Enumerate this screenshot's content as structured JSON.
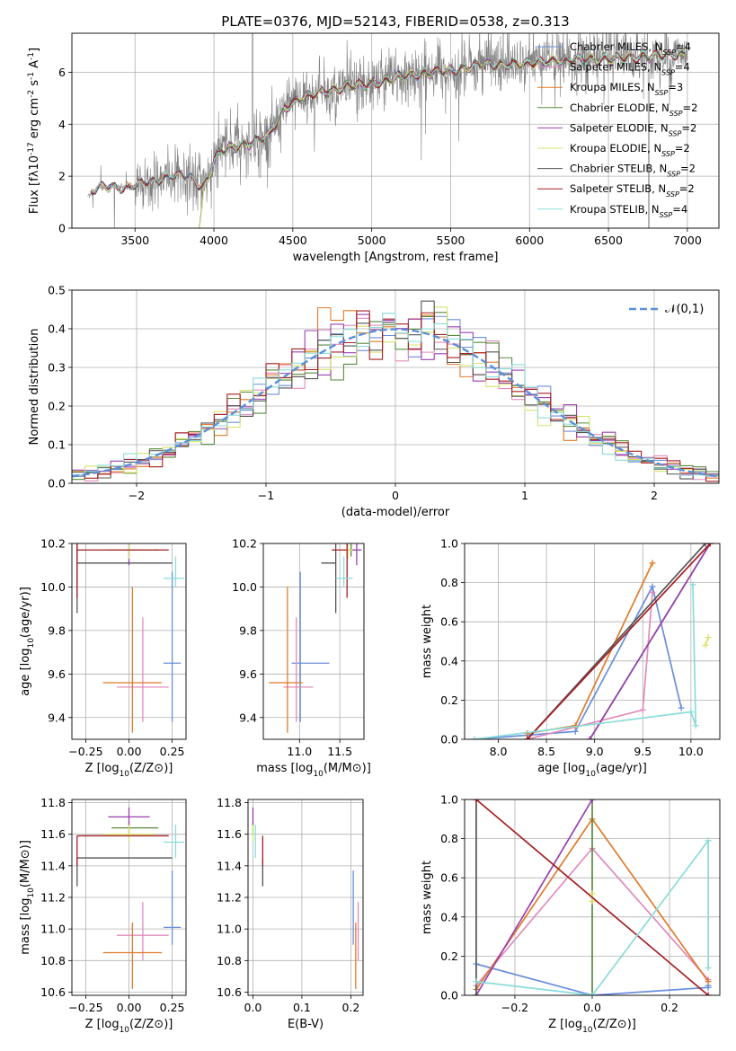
{
  "title": "PLATE=0376, MJD=52143, FIBERID=0538, z=0.313",
  "colors": {
    "Chabrier MILES": "#6a8fdc",
    "Salpeter MILES": "#e08cbc",
    "Kroupa MILES": "#e07b2a",
    "Chabrier ELODIE": "#5a8a3c",
    "Salpeter ELODIE": "#9a40b0",
    "Kroupa ELODIE": "#d8e36a",
    "Chabrier STELIB": "#555555",
    "Salpeter STELIB": "#a51f24",
    "Kroupa STELIB": "#8adcd8",
    "data": "#808080",
    "normal": "#5b8fd8"
  },
  "chart_data": [
    {
      "type": "line",
      "panel": "spectrum",
      "xlabel": "wavelength [Angstrom, rest frame]",
      "ylabel": "Flux [f$_\\lambda$10$^{-17}$ erg cm$^{-2}$ s$^{-1}$ A$^{-1}$]",
      "xlim": [
        3100,
        7200
      ],
      "ylim": [
        0,
        7.5
      ],
      "xticks": [
        3500,
        4000,
        4500,
        5000,
        5500,
        6000,
        6500,
        7000
      ],
      "yticks": [
        0,
        2,
        4,
        6
      ],
      "legend": [
        {
          "label": "Chabrier MILES, N",
          "sub": "SSP",
          "rest": "=4",
          "model": "Chabrier MILES"
        },
        {
          "label": "Salpeter MILES, N",
          "sub": "SSP",
          "rest": "=4",
          "model": "Salpeter MILES"
        },
        {
          "label": "Kroupa MILES, N",
          "sub": "SSP",
          "rest": "=3",
          "model": "Kroupa MILES"
        },
        {
          "label": "Chabrier ELODIE, N",
          "sub": "SSP",
          "rest": "=2",
          "model": "Chabrier ELODIE"
        },
        {
          "label": "Salpeter ELODIE, N",
          "sub": "SSP",
          "rest": "=2",
          "model": "Salpeter ELODIE"
        },
        {
          "label": "Kroupa ELODIE, N",
          "sub": "SSP",
          "rest": "=2",
          "model": "Kroupa ELODIE"
        },
        {
          "label": "Chabrier STELIB, N",
          "sub": "SSP",
          "rest": "=2",
          "model": "Chabrier STELIB"
        },
        {
          "label": "Salpeter STELIB, N",
          "sub": "SSP",
          "rest": "=2",
          "model": "Salpeter STELIB"
        },
        {
          "label": "Kroupa STELIB, N",
          "sub": "SSP",
          "rest": "=4",
          "model": "Kroupa STELIB"
        }
      ],
      "continuum": [
        [
          3200,
          1.25
        ],
        [
          3260,
          1.55
        ],
        [
          3350,
          1.6
        ],
        [
          3450,
          1.55
        ],
        [
          3550,
          1.7
        ],
        [
          3650,
          1.9
        ],
        [
          3750,
          2.0
        ],
        [
          3850,
          2.0
        ],
        [
          3900,
          1.7
        ],
        [
          3930,
          1.6
        ],
        [
          3960,
          1.9
        ],
        [
          4000,
          2.6
        ],
        [
          4050,
          3.0
        ],
        [
          4150,
          3.15
        ],
        [
          4250,
          3.3
        ],
        [
          4350,
          3.6
        ],
        [
          4450,
          4.6
        ],
        [
          4550,
          5.0
        ],
        [
          4650,
          5.2
        ],
        [
          4750,
          5.3
        ],
        [
          4850,
          5.5
        ],
        [
          4950,
          5.5
        ],
        [
          5050,
          5.6
        ],
        [
          5150,
          5.8
        ],
        [
          5250,
          5.9
        ],
        [
          5400,
          6.0
        ],
        [
          5550,
          6.1
        ],
        [
          5700,
          6.3
        ],
        [
          5900,
          6.3
        ],
        [
          6100,
          6.4
        ],
        [
          6300,
          6.5
        ],
        [
          6500,
          6.5
        ],
        [
          6700,
          6.6
        ],
        [
          7000,
          6.7
        ]
      ]
    },
    {
      "type": "bar",
      "panel": "residual-histogram",
      "xlabel": "(data-model)/error",
      "ylabel": "Normed distribution",
      "xlim": [
        -2.5,
        2.5
      ],
      "ylim": [
        0,
        0.5
      ],
      "xticks": [
        -2,
        -1,
        0,
        1,
        2
      ],
      "yticks": [
        0.0,
        0.1,
        0.2,
        0.3,
        0.4,
        0.5
      ],
      "legend": "$\\mathcal{N}(0,1)$",
      "bin_width": 0.1
    },
    {
      "type": "scatter",
      "panel": "Z-vs-age",
      "xlabel": "Z [log$_{10}$(Z/Z$_\\odot$)]",
      "ylabel": "age  [log$_{10}$(age/yr)]",
      "xlim": [
        -0.33,
        0.33
      ],
      "ylim": [
        9.3,
        10.2
      ],
      "xticks": [
        -0.25,
        0.0,
        0.25
      ],
      "yticks": [
        9.4,
        9.6,
        9.8,
        10.0,
        10.2
      ]
    },
    {
      "type": "scatter",
      "panel": "mass-vs-age",
      "xlabel": "mass [log$_{10}$(M/M$_\\odot$)]",
      "ylabel": "",
      "xlim": [
        10.55,
        11.8
      ],
      "ylim": [
        9.3,
        10.2
      ],
      "xticks": [
        11.0,
        11.5
      ],
      "yticks": [
        9.4,
        9.6,
        9.8,
        10.0,
        10.2
      ]
    },
    {
      "type": "line",
      "panel": "age-vs-mass-weight",
      "xlabel": "age  [log$_{10}$(age/yr)]",
      "ylabel": "mass weight",
      "xlim": [
        7.65,
        10.3
      ],
      "ylim": [
        0,
        1.0
      ],
      "xticks": [
        8.0,
        8.5,
        9.0,
        9.5,
        10.0
      ],
      "yticks": [
        0.0,
        0.2,
        0.4,
        0.6,
        0.8,
        1.0
      ]
    },
    {
      "type": "scatter",
      "panel": "Z-vs-mass",
      "xlabel": "Z [log$_{10}$(Z/Z$_\\odot$)]",
      "ylabel": "mass [log$_{10}$(M/M$_\\odot$)]",
      "xlim": [
        -0.33,
        0.33
      ],
      "ylim": [
        10.58,
        11.82
      ],
      "xticks": [
        -0.25,
        0.0,
        0.25
      ],
      "yticks": [
        10.6,
        10.8,
        11.0,
        11.2,
        11.4,
        11.6,
        11.8
      ]
    },
    {
      "type": "scatter",
      "panel": "EBV-vs-mass",
      "xlabel": "E(B-V)",
      "ylabel": "",
      "xlim": [
        -0.01,
        0.225
      ],
      "ylim": [
        10.58,
        11.82
      ],
      "xticks": [
        0.0,
        0.1,
        0.2
      ],
      "yticks": [
        10.6,
        10.8,
        11.0,
        11.2,
        11.4,
        11.6,
        11.8
      ]
    },
    {
      "type": "line",
      "panel": "Z-vs-mass-weight",
      "xlabel": "Z [log$_{10}$(Z/Z$_\\odot$)]",
      "ylabel": "mass weight",
      "xlim": [
        -0.33,
        0.33
      ],
      "ylim": [
        0,
        1.0
      ],
      "xticks": [
        -0.2,
        0.0,
        0.2
      ],
      "yticks": [
        0.0,
        0.2,
        0.4,
        0.6,
        0.8,
        1.0
      ]
    }
  ],
  "models": [
    {
      "name": "Chabrier MILES",
      "Z": 0.25,
      "age": 9.65,
      "mass": 11.01,
      "ebv": 0.205,
      "Zerr": [
        0.05,
        0.05
      ],
      "ageerr": [
        9.38,
        10.07
      ],
      "masserr": [
        10.9,
        11.37
      ],
      "ages": [
        [
          7.75,
          0.0
        ],
        [
          8.8,
          0.04
        ],
        [
          9.6,
          0.78
        ],
        [
          9.9,
          0.16
        ]
      ],
      "zs": [
        [
          -0.3,
          0.16
        ],
        [
          0.0,
          0.0
        ],
        [
          0.3,
          0.04
        ],
        [
          0.3,
          0.05
        ]
      ]
    },
    {
      "name": "Salpeter MILES",
      "Z": 0.08,
      "age": 9.54,
      "mass": 10.96,
      "ebv": 0.215,
      "Zerr": [
        0.15,
        0.15
      ],
      "ageerr": [
        9.38,
        9.86
      ],
      "masserr": [
        10.8,
        11.17
      ],
      "ages": [
        [
          8.3,
          0.0
        ],
        [
          9.5,
          0.15
        ],
        [
          9.6,
          0.75
        ]
      ],
      "zs": [
        [
          -0.3,
          0.05
        ],
        [
          0.0,
          0.75
        ],
        [
          0.3,
          0.08
        ]
      ]
    },
    {
      "name": "Kroupa MILES",
      "Z": 0.02,
      "age": 9.56,
      "mass": 10.85,
      "ebv": 0.21,
      "Zerr": [
        0.17,
        0.17
      ],
      "ageerr": [
        9.33,
        10.0
      ],
      "masserr": [
        10.62,
        11.04
      ],
      "ages": [
        [
          8.3,
          0.03
        ],
        [
          8.8,
          0.07
        ],
        [
          9.6,
          0.9
        ]
      ],
      "zs": [
        [
          -0.3,
          0.03
        ],
        [
          0.0,
          0.9
        ],
        [
          0.3,
          0.07
        ]
      ]
    },
    {
      "name": "Chabrier ELODIE",
      "Z": 0.0,
      "age": 10.17,
      "mass": 11.64,
      "ebv": 0.0,
      "Zerr": [
        0.1,
        0.17
      ],
      "ageerr": [
        10.14,
        10.2
      ],
      "masserr": [
        11.6,
        11.68
      ],
      "ages": [
        [
          8.95,
          0.0
        ],
        [
          10.2,
          1.0
        ]
      ],
      "zs": [
        [
          0.0,
          0.0
        ],
        [
          0.0,
          1.0
        ]
      ]
    },
    {
      "name": "Salpeter ELODIE",
      "Z": 0.0,
      "age": 10.17,
      "mass": 11.71,
      "ebv": 0.0,
      "Zerr": [
        0.12,
        0.12
      ],
      "ageerr": [
        10.1,
        10.2
      ],
      "masserr": [
        11.65,
        11.77
      ],
      "ages": [
        [
          8.95,
          0.0
        ],
        [
          10.2,
          1.0
        ]
      ],
      "zs": [
        [
          -0.3,
          0.0
        ],
        [
          0.0,
          1.0
        ]
      ]
    },
    {
      "name": "Kroupa ELODIE",
      "Z": 0.0,
      "age": 10.17,
      "mass": 11.6,
      "ebv": 0.0,
      "Zerr": [
        0.15,
        0.15
      ],
      "ageerr": [
        10.13,
        10.2
      ],
      "masserr": [
        11.55,
        11.66
      ],
      "ages": [
        [
          10.15,
          0.48
        ],
        [
          10.18,
          0.52
        ]
      ],
      "zs": [
        [
          0.0,
          0.48
        ],
        [
          0.0,
          0.52
        ]
      ]
    },
    {
      "name": "Chabrier STELIB",
      "Z": -0.3,
      "age": 10.11,
      "mass": 11.45,
      "ebv": 0.02,
      "Zerr": [
        0.0,
        0.55
      ],
      "ageerr": [
        9.88,
        10.2
      ],
      "masserr": [
        11.27,
        11.45
      ],
      "ages": [
        [
          8.3,
          0.0
        ],
        [
          10.15,
          1.0
        ]
      ],
      "zs": [
        [
          -0.3,
          0.0
        ],
        [
          -0.3,
          1.0
        ]
      ]
    },
    {
      "name": "Salpeter STELIB",
      "Z": -0.3,
      "age": 10.17,
      "mass": 11.59,
      "ebv": 0.02,
      "Zerr": [
        0.0,
        0.53
      ],
      "ageerr": [
        9.95,
        10.2
      ],
      "masserr": [
        11.4,
        11.59
      ],
      "ages": [
        [
          8.3,
          0.0
        ],
        [
          10.2,
          1.0
        ]
      ],
      "zs": [
        [
          -0.3,
          1.0
        ],
        [
          0.3,
          0.0
        ]
      ]
    },
    {
      "name": "Kroupa STELIB",
      "Z": 0.27,
      "age": 10.04,
      "mass": 11.55,
      "ebv": 0.005,
      "Zerr": [
        0.07,
        0.05
      ],
      "ageerr": [
        10.0,
        10.14
      ],
      "masserr": [
        11.45,
        11.66
      ],
      "ages": [
        [
          7.75,
          0.0
        ],
        [
          10.0,
          0.14
        ],
        [
          10.05,
          0.07
        ],
        [
          10.02,
          0.79
        ]
      ],
      "zs": [
        [
          -0.3,
          0.07
        ],
        [
          0.0,
          0.0
        ],
        [
          0.3,
          0.79
        ],
        [
          0.3,
          0.14
        ]
      ]
    }
  ]
}
